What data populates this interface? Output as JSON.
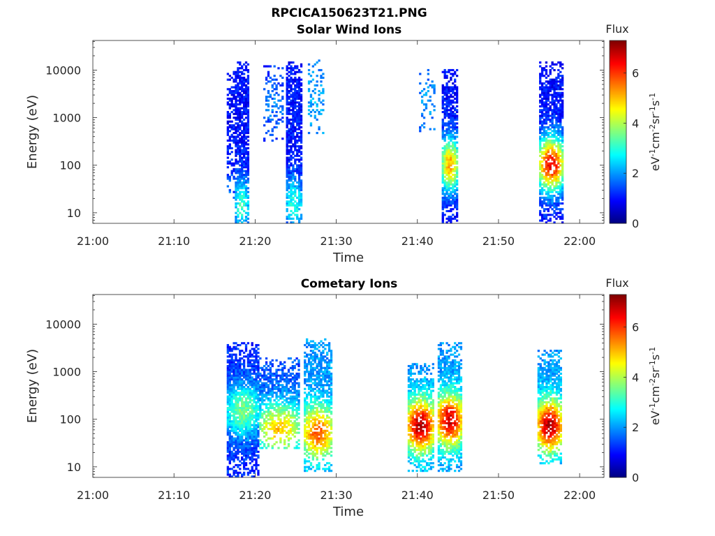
{
  "figure_title": "RPCICA150623T21.PNG",
  "colorbar": {
    "title": "Flux",
    "label": "eV-1cm-2sr-1s-1",
    "ticks": [
      "0",
      "2",
      "4",
      "6"
    ],
    "range": [
      0,
      7.3
    ],
    "colormap": "jet"
  },
  "chart_data": [
    {
      "type": "heatmap",
      "title": "Solar Wind Ions",
      "xlabel": "Time",
      "ylabel": "Energy (eV)",
      "x_ticks": [
        "21:00",
        "21:10",
        "21:20",
        "21:30",
        "21:40",
        "21:50",
        "22:00"
      ],
      "y_ticks": [
        "10",
        "100",
        "1000",
        "10000"
      ],
      "y_scale": "log",
      "xlim": [
        "21:00",
        "22:03"
      ],
      "ylim": [
        6,
        42000
      ],
      "clim": [
        0,
        7.3
      ],
      "bursts": [
        {
          "t_start": "21:16.5",
          "t_end": "21:17.3",
          "e_min": 20,
          "e_max": 9000,
          "flux_peak": 1.6,
          "flux_low": 1.0,
          "peak_energy": 30,
          "density": 0.55
        },
        {
          "t_start": "21:17.5",
          "t_end": "21:19.2",
          "e_min": 6,
          "e_max": 15000,
          "flux_peak": 3.2,
          "flux_low": 1.0,
          "peak_energy": 15,
          "density": 0.8
        },
        {
          "t_start": "21:21.0",
          "t_end": "21:23.5",
          "e_min": 300,
          "e_max": 12000,
          "flux_peak": 1.8,
          "flux_low": 1.2,
          "peak_energy": 2000,
          "density": 0.3
        },
        {
          "t_start": "21:23.8",
          "t_end": "21:25.8",
          "e_min": 6,
          "e_max": 14000,
          "flux_peak": 3.0,
          "flux_low": 1.0,
          "peak_energy": 15,
          "density": 0.8
        },
        {
          "t_start": "21:26.5",
          "t_end": "21:28.5",
          "e_min": 500,
          "e_max": 16000,
          "flux_peak": 2.2,
          "flux_low": 1.8,
          "peak_energy": 2000,
          "density": 0.3
        },
        {
          "t_start": "21:40.2",
          "t_end": "21:42.0",
          "e_min": 500,
          "e_max": 10000,
          "flux_peak": 2.0,
          "flux_low": 1.6,
          "peak_energy": 2000,
          "density": 0.25
        },
        {
          "t_start": "21:43.0",
          "t_end": "21:45.0",
          "e_min": 6,
          "e_max": 10000,
          "flux_peak": 5.2,
          "flux_low": 1.0,
          "peak_energy": 100,
          "density": 0.8
        },
        {
          "t_start": "21:55.0",
          "t_end": "21:58.0",
          "e_min": 6,
          "e_max": 14000,
          "flux_peak": 6.5,
          "flux_low": 1.0,
          "peak_energy": 100,
          "density": 0.75
        }
      ]
    },
    {
      "type": "heatmap",
      "title": "Cometary Ions",
      "xlabel": "Time",
      "ylabel": "Energy (eV)",
      "x_ticks": [
        "21:00",
        "21:10",
        "21:20",
        "21:30",
        "21:40",
        "21:50",
        "22:00"
      ],
      "y_ticks": [
        "10",
        "100",
        "1000",
        "10000"
      ],
      "y_scale": "log",
      "xlim": [
        "21:00",
        "22:03"
      ],
      "ylim": [
        6,
        42000
      ],
      "clim": [
        0,
        7.3
      ],
      "bursts": [
        {
          "t_start": "21:16.5",
          "t_end": "21:20.5",
          "e_min": 6,
          "e_max": 4000,
          "flux_peak": 3.6,
          "flux_low": 1.2,
          "peak_energy": 150,
          "density": 0.85
        },
        {
          "t_start": "21:20.5",
          "t_end": "21:25.5",
          "e_min": 25,
          "e_max": 2000,
          "flux_peak": 5.0,
          "flux_low": 1.5,
          "peak_energy": 60,
          "density": 0.7
        },
        {
          "t_start": "21:26.0",
          "t_end": "21:29.5",
          "e_min": 8,
          "e_max": 5000,
          "flux_peak": 5.8,
          "flux_low": 2.0,
          "peak_energy": 50,
          "density": 0.7
        },
        {
          "t_start": "21:38.8",
          "t_end": "21:42.0",
          "e_min": 8,
          "e_max": 1500,
          "flux_peak": 7.0,
          "flux_low": 2.0,
          "peak_energy": 70,
          "density": 0.8
        },
        {
          "t_start": "21:42.5",
          "t_end": "21:45.5",
          "e_min": 8,
          "e_max": 4000,
          "flux_peak": 6.8,
          "flux_low": 2.0,
          "peak_energy": 90,
          "density": 0.8
        },
        {
          "t_start": "21:54.8",
          "t_end": "21:57.8",
          "e_min": 12,
          "e_max": 2800,
          "flux_peak": 7.0,
          "flux_low": 2.0,
          "peak_energy": 70,
          "density": 0.8
        }
      ]
    }
  ]
}
